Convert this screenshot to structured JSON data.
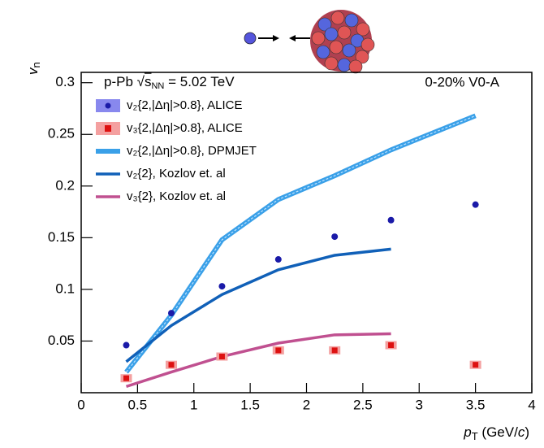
{
  "chart_data": {
    "type": "line",
    "annotations": {
      "system": [
        "p-Pb ",
        "√",
        "s",
        "NN",
        " = 5.02 TeV"
      ],
      "centrality": "0-20% V0-A"
    },
    "y_label": [
      "v",
      "n"
    ],
    "x_label": [
      "p",
      "T",
      " (GeV/",
      "c",
      ")"
    ],
    "x": [
      0.4,
      0.8,
      1.25,
      1.75,
      2.25,
      2.75,
      3.5
    ],
    "series": [
      {
        "name": "v₂{2,|Δη|>0.8}, ALICE",
        "color": "#1a1aa8",
        "style": "points",
        "values": [
          0.046,
          0.077,
          0.103,
          0.129,
          0.151,
          0.167,
          0.182
        ]
      },
      {
        "name": "v₃{2,|Δη|>0.8}, ALICE",
        "color": "#dd1111",
        "style": "squares",
        "values": [
          0.014,
          0.027,
          0.035,
          0.041,
          0.041,
          0.046,
          0.027
        ]
      },
      {
        "name": "v₂{2,|Δη|>0.8}, DPMJET",
        "color": "#3aa0e8",
        "style": "band",
        "values": [
          0.02,
          0.075,
          0.148,
          0.187,
          0.21,
          0.235,
          0.268
        ]
      },
      {
        "name": "v₂{2}, Kozlov et. al",
        "color": "#1060b8",
        "style": "line",
        "values": [
          0.03,
          0.065,
          0.095,
          0.119,
          0.133,
          0.139,
          null
        ]
      },
      {
        "name": "v₃{2}, Kozlov et. al",
        "color": "#c05090",
        "style": "line",
        "values": [
          0.006,
          0.02,
          0.035,
          0.048,
          0.056,
          0.057,
          null
        ]
      }
    ],
    "xlim": [
      0,
      4
    ],
    "xticks": [
      0,
      0.5,
      1,
      1.5,
      2,
      2.5,
      3,
      3.5,
      4
    ],
    "ylim": [
      0,
      0.31
    ],
    "yticks": [
      0.05,
      0.1,
      0.15,
      0.2,
      0.25,
      0.3
    ]
  }
}
